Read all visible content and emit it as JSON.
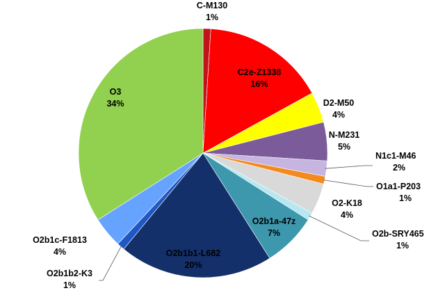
{
  "chart_data": {
    "type": "pie",
    "slices": [
      {
        "name": "C-M130",
        "value": 1,
        "label": "1%",
        "color": "#c0141c"
      },
      {
        "name": "C2e-Z1338",
        "value": 16,
        "label": "16%",
        "color": "#ff0000"
      },
      {
        "name": "D2-M50",
        "value": 4,
        "label": "4%",
        "color": "#ffff00"
      },
      {
        "name": "N-M231",
        "value": 5,
        "label": "5%",
        "color": "#7b5b99"
      },
      {
        "name": "N1c1-M46",
        "value": 2,
        "label": "2%",
        "color": "#c6b5e0"
      },
      {
        "name": "O1a1-P203",
        "value": 1,
        "label": "1%",
        "color": "#f28a1e"
      },
      {
        "name": "O2-K18",
        "value": 4,
        "label": "4%",
        "color": "#d9d9d9"
      },
      {
        "name": "O2b-SRY465",
        "value": 1,
        "label": "1%",
        "color": "#b7e8f2"
      },
      {
        "name": "O2b1a-47z",
        "value": 7,
        "label": "7%",
        "color": "#3d97ad"
      },
      {
        "name": "O2b1b1-L682",
        "value": 20,
        "label": "20%",
        "color": "#14306b"
      },
      {
        "name": "O2b1b2-K3",
        "value": 1,
        "label": "1%",
        "color": "#1f57c4"
      },
      {
        "name": "O2b1c-F1813",
        "value": 4,
        "label": "4%",
        "color": "#66a3ff"
      },
      {
        "name": "O3",
        "value": 34,
        "label": "34%",
        "color": "#92d050"
      }
    ]
  }
}
